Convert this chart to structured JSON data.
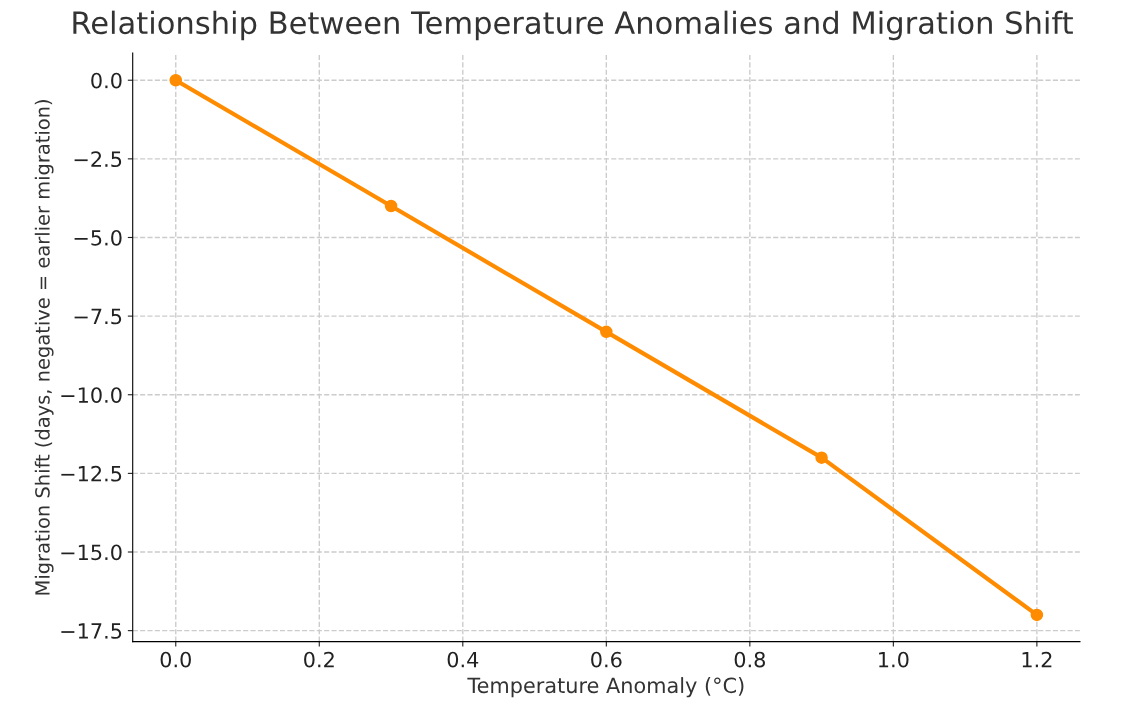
{
  "chart_data": {
    "type": "line",
    "title": "Relationship Between Temperature Anomalies and Migration Shift",
    "xlabel": "Temperature Anomaly (°C)",
    "ylabel": "Migration Shift (days, negative = earlier migration)",
    "x": [
      0.0,
      0.3,
      0.6,
      0.9,
      1.2
    ],
    "series": [
      {
        "color": "#ff8c00",
        "values": [
          0,
          -4,
          -8,
          -12,
          -17
        ]
      }
    ],
    "xlim": [
      -0.06,
      1.26
    ],
    "ylim": [
      -17.85,
      0.86
    ],
    "xticks": [
      {
        "value": 0,
        "label": "0.0"
      },
      0.2,
      0.4,
      0.6,
      0.8,
      {
        "value": 1,
        "label": "1.0"
      },
      1.2
    ],
    "yticks": [
      {
        "value": 0,
        "label": "0.0"
      },
      {
        "value": -2.5,
        "label": "−2.5"
      },
      {
        "value": -5,
        "label": "−5.0"
      },
      {
        "value": -7.5,
        "label": "−7.5"
      },
      {
        "value": -10,
        "label": "−10.0"
      },
      {
        "value": -12.5,
        "label": "−12.5"
      },
      {
        "value": -15,
        "label": "−15.0"
      },
      {
        "value": -17.5,
        "label": "−17.5"
      }
    ],
    "grid": true,
    "marker": "circle",
    "line_style": "solid"
  }
}
